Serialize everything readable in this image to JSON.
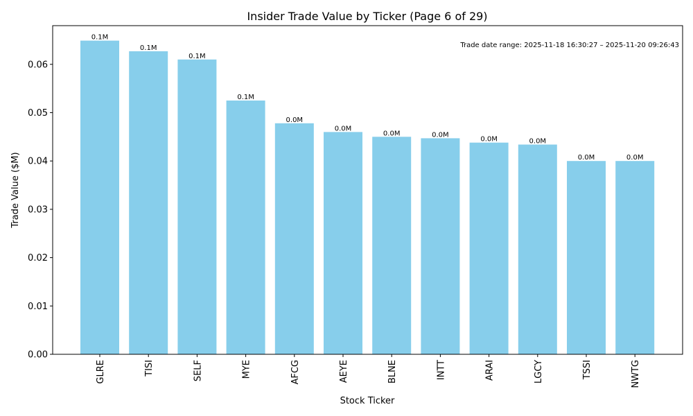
{
  "chart_data": {
    "type": "bar",
    "title": "Insider Trade Value by Ticker (Page 6 of 29)",
    "xlabel": "Stock Ticker",
    "ylabel": "Trade Value ($M)",
    "categories": [
      "GLRE",
      "TISI",
      "SELF",
      "MYE",
      "AFCG",
      "AEYE",
      "BLNE",
      "INTT",
      "ARAI",
      "LGCY",
      "TSSI",
      "NWTG"
    ],
    "values": [
      0.0649,
      0.0627,
      0.061,
      0.0525,
      0.0478,
      0.046,
      0.045,
      0.0447,
      0.0438,
      0.0434,
      0.04,
      0.04
    ],
    "bar_labels": [
      "0.1M",
      "0.1M",
      "0.1M",
      "0.1M",
      "0.0M",
      "0.0M",
      "0.0M",
      "0.0M",
      "0.0M",
      "0.0M",
      "0.0M",
      "0.0M"
    ],
    "ylim": [
      0,
      0.068
    ],
    "yticks": [
      "0.00",
      "0.01",
      "0.02",
      "0.03",
      "0.04",
      "0.05",
      "0.06"
    ],
    "annotation": "Trade date range: 2025-11-18 16:30:27 – 2025-11-20 09:26:43",
    "bar_color": "#87CEEB",
    "grid": false,
    "legend": "none"
  }
}
